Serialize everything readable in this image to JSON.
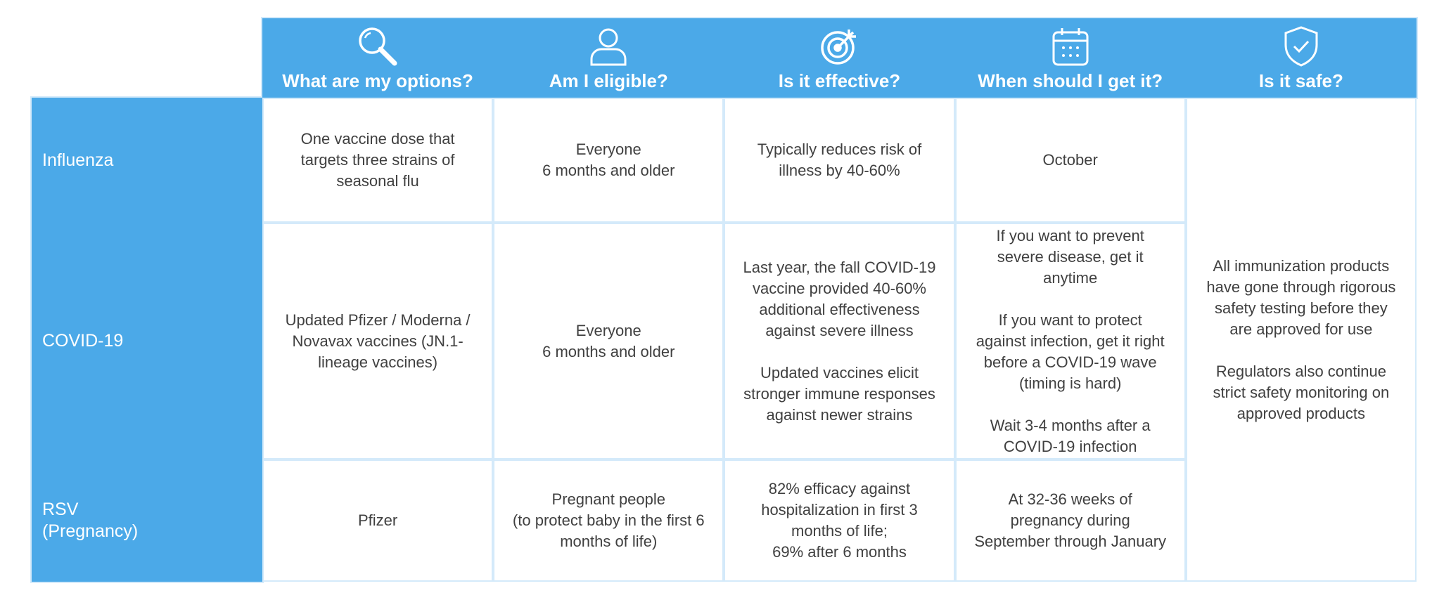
{
  "table": {
    "headers": [
      "What are my options?",
      "Am I eligible?",
      "Is it effective?",
      "When should I get it?",
      "Is it safe?"
    ],
    "rows": [
      {
        "label": [
          "Influenza"
        ],
        "cells": [
          [
            "One vaccine dose that targets three strains of seasonal flu"
          ],
          [
            "Everyone",
            "6 months and older"
          ],
          [
            "Typically reduces risk of illness by 40-60%"
          ],
          [
            "October"
          ]
        ]
      },
      {
        "label": [
          "COVID-19"
        ],
        "cells": [
          [
            "Updated Pfizer / Moderna / Novavax vaccines (JN.1-lineage vaccines)"
          ],
          [
            "Everyone",
            "6 months and older"
          ],
          [
            "Last year, the fall COVID-19 vaccine provided 40-60% additional effectiveness against severe illness",
            "Updated vaccines elicit stronger immune responses against newer strains"
          ],
          [
            "If you want to prevent severe disease, get it anytime",
            "If you want to protect against infection, get it right before a COVID-19 wave (timing is hard)",
            "Wait 3-4 months after a COVID-19 infection"
          ]
        ]
      },
      {
        "label": [
          "RSV",
          "(Pregnancy)"
        ],
        "cells": [
          [
            "Pfizer"
          ],
          [
            "Pregnant people",
            "(to protect baby in the first 6 months of life)"
          ],
          [
            "82% efficacy against hospitalization in first 3 months of life;",
            "69% after 6 months"
          ],
          [
            "At 32-36 weeks of pregnancy during September through January"
          ]
        ]
      }
    ],
    "safety": [
      "All immunization products have gone through rigorous safety testing before they are approved for use",
      "Regulators also continue strict safety monitoring on approved products"
    ]
  }
}
